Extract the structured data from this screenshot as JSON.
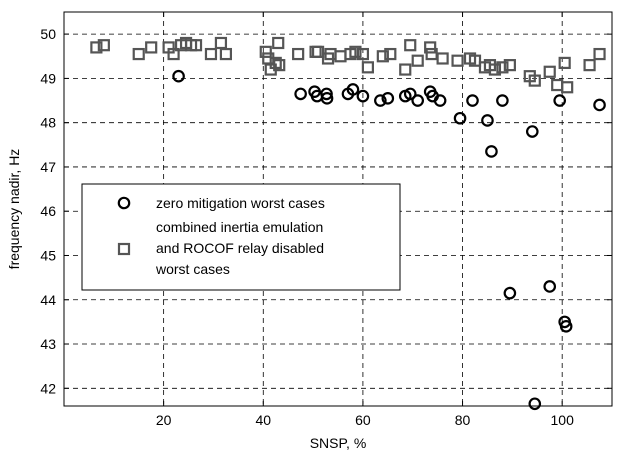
{
  "chart_data": {
    "type": "scatter",
    "title": "",
    "xlabel": "SNSP, %",
    "ylabel": "frequency nadir, Hz",
    "xlim": [
      0,
      110
    ],
    "ylim": [
      41.6,
      50.5
    ],
    "xticks": [
      20,
      40,
      60,
      80,
      100
    ],
    "yticks": [
      42,
      43,
      44,
      45,
      46,
      47,
      48,
      49,
      50
    ],
    "grid": true,
    "legend_position": "middle-left",
    "series": [
      {
        "name": "zero mitigation worst cases",
        "marker": "circle",
        "color": "#000000",
        "points": [
          [
            23.0,
            49.05
          ],
          [
            47.5,
            48.65
          ],
          [
            50.3,
            48.7
          ],
          [
            50.8,
            48.6
          ],
          [
            52.7,
            48.65
          ],
          [
            52.8,
            48.55
          ],
          [
            57.0,
            48.65
          ],
          [
            58.0,
            48.75
          ],
          [
            60.0,
            48.6
          ],
          [
            63.5,
            48.5
          ],
          [
            65.0,
            48.55
          ],
          [
            68.5,
            48.6
          ],
          [
            69.5,
            48.65
          ],
          [
            71.0,
            48.5
          ],
          [
            73.5,
            48.7
          ],
          [
            74.0,
            48.6
          ],
          [
            75.5,
            48.5
          ],
          [
            79.5,
            48.1
          ],
          [
            82.0,
            48.5
          ],
          [
            85.0,
            48.05
          ],
          [
            85.8,
            47.35
          ],
          [
            88.0,
            48.5
          ],
          [
            89.5,
            44.15
          ],
          [
            94.0,
            47.8
          ],
          [
            94.5,
            41.65
          ],
          [
            97.5,
            44.3
          ],
          [
            99.5,
            48.5
          ],
          [
            100.5,
            43.5
          ],
          [
            100.8,
            43.4
          ],
          [
            107.5,
            48.4
          ]
        ]
      },
      {
        "name": "combined inertia emulation and ROCOF relay disabled worst cases",
        "marker": "square",
        "color": "#555555",
        "points": [
          [
            6.5,
            49.7
          ],
          [
            8.0,
            49.75
          ],
          [
            15.0,
            49.55
          ],
          [
            17.5,
            49.7
          ],
          [
            21.0,
            49.7
          ],
          [
            22.0,
            49.55
          ],
          [
            23.5,
            49.75
          ],
          [
            24.5,
            49.8
          ],
          [
            25.5,
            49.75
          ],
          [
            26.5,
            49.75
          ],
          [
            29.5,
            49.55
          ],
          [
            31.5,
            49.8
          ],
          [
            32.5,
            49.55
          ],
          [
            40.5,
            49.6
          ],
          [
            41.0,
            49.45
          ],
          [
            41.5,
            49.2
          ],
          [
            42.5,
            49.35
          ],
          [
            43.0,
            49.8
          ],
          [
            43.2,
            49.3
          ],
          [
            47.0,
            49.55
          ],
          [
            50.5,
            49.6
          ],
          [
            51.0,
            49.6
          ],
          [
            53.0,
            49.45
          ],
          [
            53.5,
            49.55
          ],
          [
            55.5,
            49.5
          ],
          [
            57.5,
            49.55
          ],
          [
            58.5,
            49.6
          ],
          [
            60.0,
            49.55
          ],
          [
            61.0,
            49.25
          ],
          [
            64.0,
            49.5
          ],
          [
            65.5,
            49.55
          ],
          [
            68.5,
            49.2
          ],
          [
            69.5,
            49.75
          ],
          [
            71.0,
            49.4
          ],
          [
            73.5,
            49.7
          ],
          [
            73.8,
            49.55
          ],
          [
            76.0,
            49.45
          ],
          [
            79.0,
            49.4
          ],
          [
            81.5,
            49.45
          ],
          [
            82.5,
            49.4
          ],
          [
            84.5,
            49.25
          ],
          [
            85.5,
            49.3
          ],
          [
            86.5,
            49.2
          ],
          [
            88.0,
            49.25
          ],
          [
            89.5,
            49.3
          ],
          [
            93.5,
            49.05
          ],
          [
            94.5,
            48.95
          ],
          [
            97.5,
            49.15
          ],
          [
            99.0,
            48.85
          ],
          [
            100.5,
            49.35
          ],
          [
            101.0,
            48.8
          ],
          [
            105.5,
            49.3
          ],
          [
            107.5,
            49.55
          ]
        ]
      }
    ]
  }
}
